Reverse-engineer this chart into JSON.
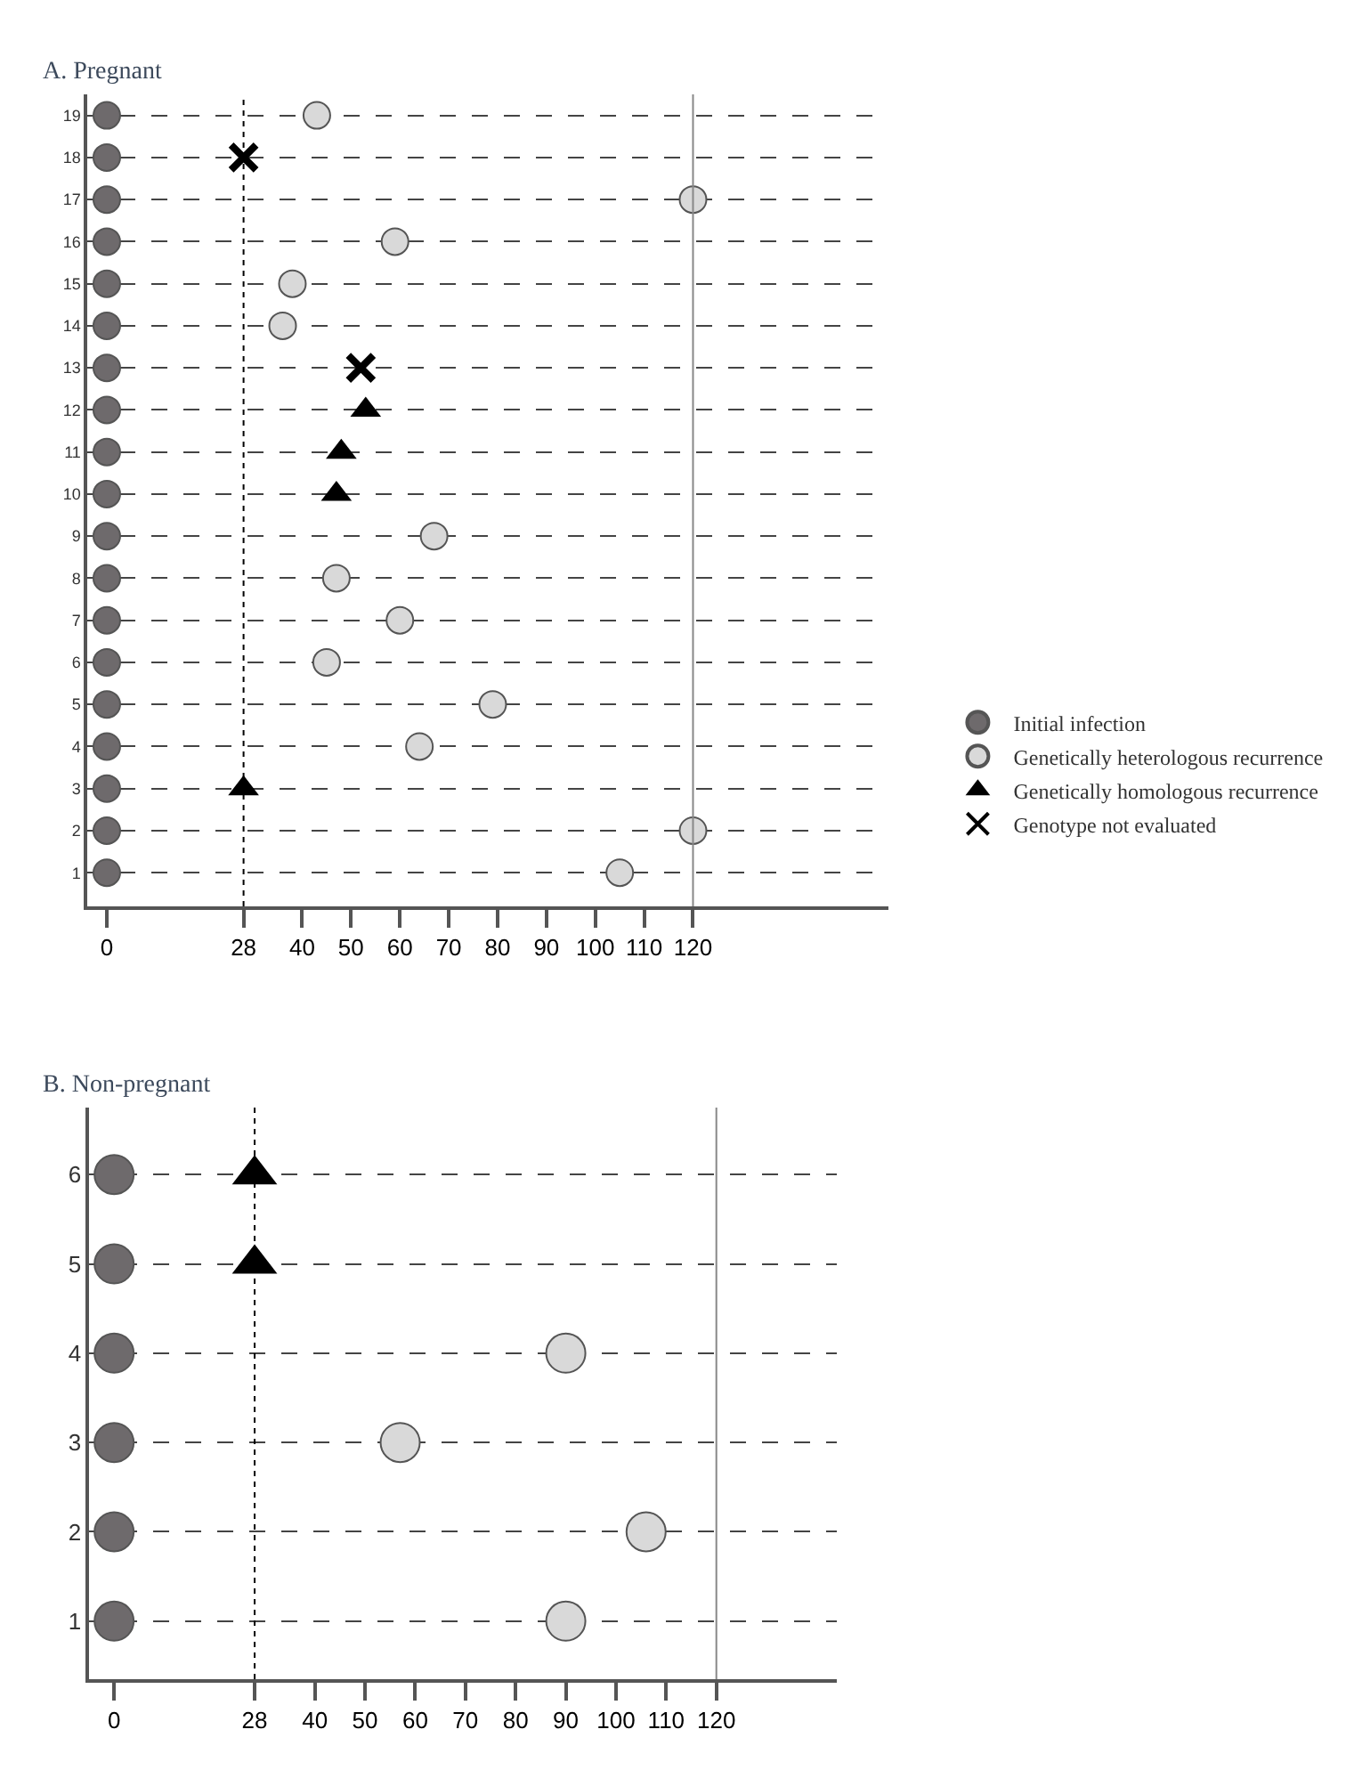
{
  "chart_data": [
    {
      "type": "scatter",
      "title": "A. Pregnant",
      "xlim": [
        -4,
        160
      ],
      "xticks": [
        0,
        28,
        40,
        50,
        60,
        70,
        80,
        90,
        100,
        110,
        120
      ],
      "ylim": [
        0.2,
        19.5
      ],
      "yticks": [
        1,
        2,
        3,
        4,
        5,
        6,
        7,
        8,
        9,
        10,
        11,
        12,
        13,
        14,
        15,
        16,
        17,
        18,
        19
      ],
      "grid": "y",
      "legend": "right",
      "ref_lines": [
        {
          "axis": "x",
          "value": 28,
          "label": null,
          "color": "#000000",
          "line_style": "dotted"
        },
        {
          "axis": "x",
          "value": 120,
          "label": null,
          "color": "#888888",
          "line_style": "solid"
        }
      ],
      "series": [
        {
          "name": "Initial infection",
          "color": "#6e6a6c",
          "marker": "circle",
          "x": [
            0,
            0,
            0,
            0,
            0,
            0,
            0,
            0,
            0,
            0,
            0,
            0,
            0,
            0,
            0,
            0,
            0,
            0,
            0
          ],
          "values": [
            1,
            2,
            3,
            4,
            5,
            6,
            7,
            8,
            9,
            10,
            11,
            12,
            13,
            14,
            15,
            16,
            17,
            18,
            19
          ]
        },
        {
          "name": "Genetically heterologous recurrence",
          "color": "#d9d9d9",
          "marker": "circle",
          "x": [
            105,
            120,
            64,
            79,
            45,
            60,
            47,
            67,
            36,
            38,
            59,
            120,
            43
          ],
          "values": [
            1,
            2,
            4,
            5,
            6,
            7,
            8,
            9,
            14,
            15,
            16,
            17,
            19
          ]
        },
        {
          "name": "Genetically homologous recurrence",
          "color": "#000000",
          "marker": "triangle",
          "x": [
            28,
            47,
            48,
            53
          ],
          "values": [
            3,
            10,
            11,
            12
          ]
        },
        {
          "name": "Genotype not evaluated",
          "color": "#000000",
          "marker": "cross",
          "x": [
            52,
            28
          ],
          "values": [
            13,
            18
          ]
        }
      ]
    },
    {
      "type": "scatter",
      "title": "B. Non-pregnant",
      "xlim": [
        -5,
        144
      ],
      "xticks": [
        0,
        28,
        40,
        50,
        60,
        70,
        80,
        90,
        100,
        110,
        120
      ],
      "ylim": [
        0.35,
        6.75
      ],
      "yticks": [
        1,
        2,
        3,
        4,
        5,
        6
      ],
      "grid": "y",
      "legend": false,
      "ref_lines": [
        {
          "axis": "x",
          "value": 28,
          "label": null,
          "color": "#000000",
          "line_style": "dotted"
        },
        {
          "axis": "x",
          "value": 120,
          "label": null,
          "color": "#888888",
          "line_style": "solid"
        }
      ],
      "series": [
        {
          "color": "#6e6a6c",
          "marker": "circle",
          "x": [
            0,
            0,
            0,
            0,
            0,
            0
          ],
          "values": [
            1,
            2,
            3,
            4,
            5,
            6
          ]
        },
        {
          "color": "#d9d9d9",
          "marker": "circle",
          "x": [
            90,
            106,
            57,
            90
          ],
          "values": [
            1,
            2,
            3,
            4
          ]
        },
        {
          "color": "#000000",
          "marker": "triangle",
          "x": [
            28,
            28
          ],
          "values": [
            5,
            6
          ]
        }
      ]
    }
  ]
}
